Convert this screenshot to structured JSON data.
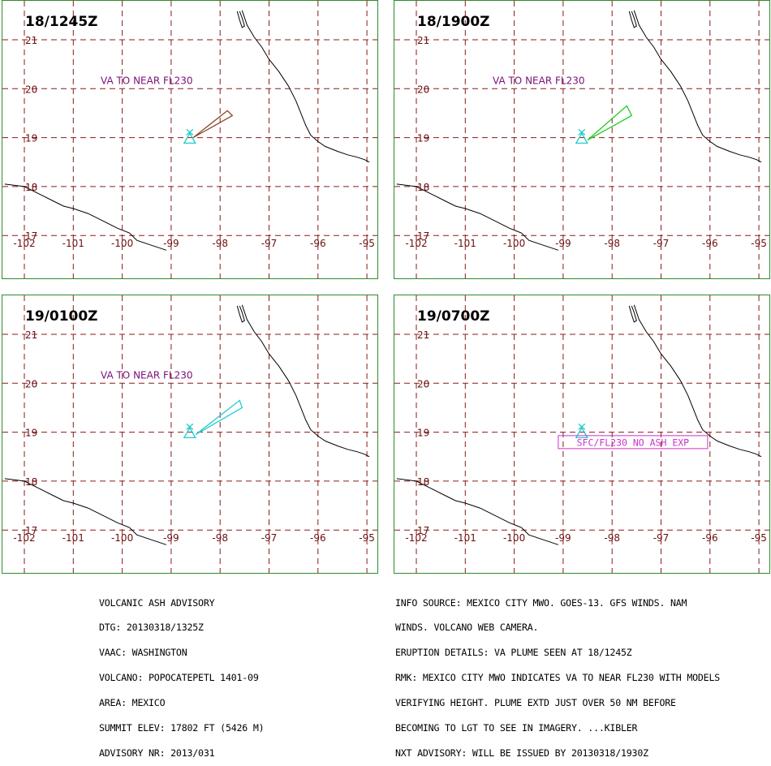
{
  "panels": [
    {
      "time": "18/1245Z",
      "label": "VA TO NEAR FL230",
      "plume_color": "#8b4a2b",
      "plume": [
        [
          -98.55,
          19.0
        ],
        [
          -97.85,
          19.55
        ],
        [
          -97.75,
          19.45
        ]
      ]
    },
    {
      "time": "18/1900Z",
      "label": "VA TO NEAR FL230",
      "plume_color": "#22cc22",
      "plume": [
        [
          -98.5,
          18.95
        ],
        [
          -97.7,
          19.65
        ],
        [
          -97.6,
          19.45
        ]
      ]
    },
    {
      "time": "19/0100Z",
      "label": "VA TO NEAR FL230",
      "plume_color": "#22cccc",
      "plume": [
        [
          -98.5,
          18.95
        ],
        [
          -97.6,
          19.65
        ],
        [
          -97.55,
          19.5
        ]
      ]
    },
    {
      "time": "19/0700Z",
      "label": "",
      "plume_color": "#22cccc",
      "plume": [],
      "box_label": "SFC/FL230 NO ASH EXP"
    }
  ],
  "axes": {
    "lat_labels": [
      "21",
      "20",
      "19",
      "18",
      "17"
    ],
    "lon_labels": [
      "-102",
      "-101",
      "-100",
      "-99",
      "-98",
      "-97",
      "-96",
      "-95"
    ]
  },
  "colors": {
    "grid": "#8b1a1a",
    "tick_label": "#6b0f0f",
    "coast": "#000000",
    "volcano": "#22cccc",
    "va_label": "#7a0f7a",
    "box": "#cc33cc",
    "border": "#2e8b2e"
  },
  "advisory_left": [
    "VOLCANIC ASH ADVISORY",
    "DTG: 20130318/1325Z",
    "VAAC: WASHINGTON",
    "VOLCANO: POPOCATEPETL 1401-09",
    "AREA: MEXICO",
    "SUMMIT ELEV: 17802 FT (5426 M)",
    "ADVISORY NR: 2013/031"
  ],
  "advisory_right": [
    "INFO SOURCE: MEXICO CITY MWO. GOES-13. GFS WINDS. NAM",
    "WINDS. VOLCANO WEB CAMERA.",
    "ERUPTION DETAILS: VA PLUME SEEN AT 18/1245Z",
    "RMK: MEXICO CITY MWO INDICATES VA TO NEAR FL230 WITH MODELS",
    "VERIFYING HEIGHT. PLUME EXTD JUST OVER 50 NM BEFORE",
    "BECOMING TO LGT TO SEE IN IMAGERY. ...KIBLER",
    "NXT ADVISORY: WILL BE ISSUED BY 20130318/1930Z"
  ]
}
